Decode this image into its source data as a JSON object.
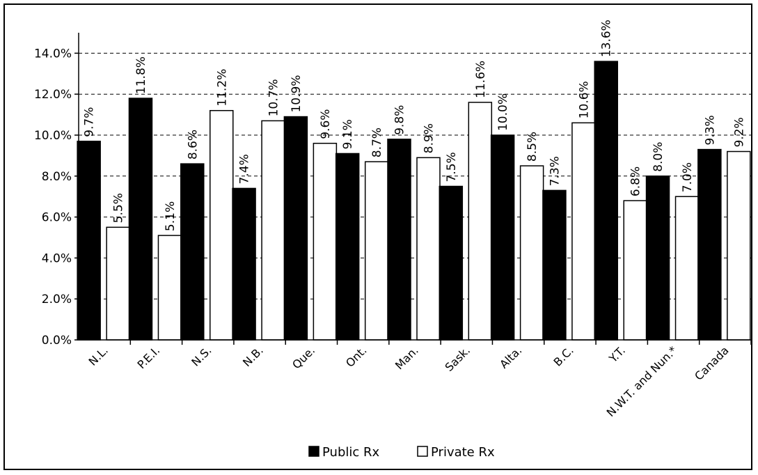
{
  "chart_data": {
    "type": "bar",
    "categories": [
      "N.L.",
      "P.E.I.",
      "N.S.",
      "N.B.",
      "Que.",
      "Ont.",
      "Man.",
      "Sask.",
      "Alta.",
      "B.C.",
      "Y.T.",
      "N.W.T. and Nun.*",
      "Canada"
    ],
    "series": [
      {
        "name": "Public Rx",
        "color": "#000000",
        "values": [
          9.7,
          11.8,
          8.6,
          7.4,
          10.9,
          9.1,
          9.8,
          7.5,
          10.0,
          7.3,
          13.6,
          8.0,
          9.3
        ],
        "labels": [
          "9.7%",
          "11.8%",
          "8.6%",
          "7.4%",
          "10.9%",
          "9.1%",
          "9.8%",
          "7.5%",
          "10.0%",
          "7.3%",
          "13.6%",
          "8.0%",
          "9.3%"
        ]
      },
      {
        "name": "Private Rx",
        "color": "#ffffff",
        "values": [
          5.5,
          5.1,
          11.2,
          10.7,
          9.6,
          8.7,
          8.9,
          11.6,
          8.5,
          10.6,
          6.8,
          7.0,
          9.2
        ],
        "labels": [
          "5.5%",
          "5.1%",
          "11.2%",
          "10.7%",
          "9.6%",
          "8.7%",
          "8.9%",
          "11.6%",
          "8.5%",
          "10.6%",
          "6.8%",
          "7.0%",
          "9.2%"
        ]
      }
    ],
    "ylim": [
      0,
      15
    ],
    "yticks": [
      0,
      2,
      4,
      6,
      8,
      10,
      12,
      14
    ],
    "ytick_labels": [
      "0.0%",
      "2.0%",
      "4.0%",
      "6.0%",
      "8.0%",
      "10.0%",
      "12.0%",
      "14.0%"
    ],
    "grid": "horizontal dashed",
    "legend": "bottom-center"
  }
}
